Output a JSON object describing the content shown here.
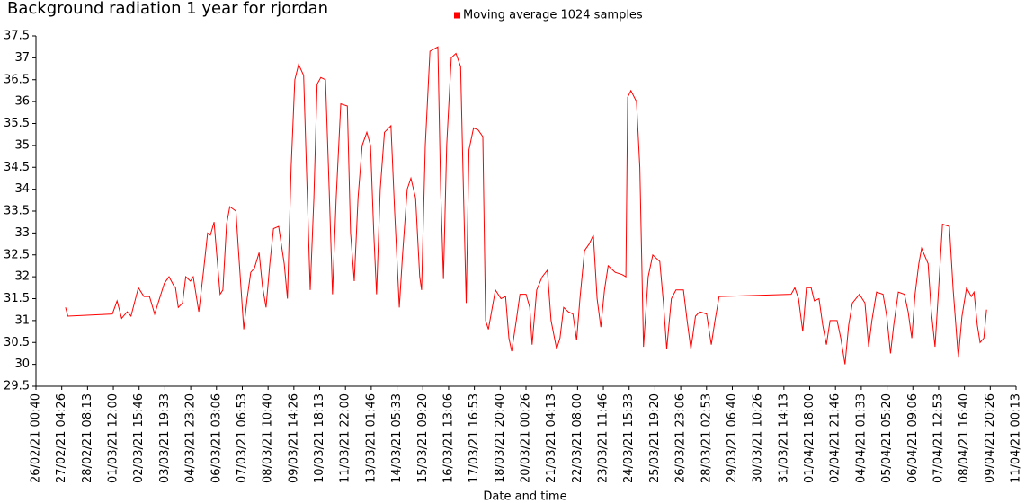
{
  "chart_data": {
    "type": "line",
    "title": "Background radiation 1 year for rjordan",
    "x_label": "Date and time",
    "xlim": [
      "26/02/21 00:40",
      "11/04/21 00:13"
    ],
    "xticks": [
      "26/02/21 00:40",
      "27/02/21 04:26",
      "28/02/21 08:13",
      "01/03/21 12:00",
      "02/03/21 15:46",
      "03/03/21 19:33",
      "04/03/21 23:20",
      "06/03/21 03:06",
      "07/03/21 06:53",
      "08/03/21 10:40",
      "09/03/21 14:26",
      "10/03/21 18:13",
      "11/03/21 22:00",
      "13/03/21 01:46",
      "14/03/21 05:33",
      "15/03/21 09:20",
      "16/03/21 13:06",
      "17/03/21 16:53",
      "18/03/21 20:40",
      "20/03/21 00:26",
      "21/03/21 04:13",
      "22/03/21 08:00",
      "23/03/21 11:46",
      "24/03/21 15:33",
      "25/03/21 19:20",
      "26/03/21 23:06",
      "28/03/21 02:53",
      "29/03/21 06:40",
      "30/03/21 10:26",
      "31/03/21 14:13",
      "01/04/21 18:00",
      "02/04/21 21:46",
      "04/04/21 01:33",
      "05/04/21 05:20",
      "06/04/21 09:06",
      "07/04/21 12:53",
      "08/04/21 16:40",
      "09/04/21 20:26",
      "11/04/21 00:13"
    ],
    "ylim": [
      29.5,
      37.5
    ],
    "yticks": [
      29.5,
      30,
      30.5,
      31,
      31.5,
      32,
      32.5,
      33,
      33.5,
      34,
      34.5,
      35,
      35.5,
      36,
      36.5,
      37,
      37.5
    ],
    "grid": false,
    "legend": "top",
    "x": [
      "27/02/21 08:30",
      "27/02/21 11:00",
      "01/03/21 11:00",
      "01/03/21 16:00",
      "01/03/21 21:00",
      "02/03/21 03:00",
      "02/03/21 07:00",
      "02/03/21 15:00",
      "02/03/21 21:00",
      "03/03/21 03:00",
      "03/03/21 08:30",
      "03/03/21 19:00",
      "04/03/21 00:00",
      "04/03/21 05:00",
      "04/03/21 07:00",
      "04/03/21 10:00",
      "04/03/21 14:30",
      "04/03/21 18:00",
      "04/03/21 23:00",
      "05/03/21 02:00",
      "05/03/21 08:00",
      "05/03/21 13:00",
      "05/03/21 17:30",
      "05/03/21 20:30",
      "06/03/21 00:30",
      "06/03/21 03:00",
      "06/03/21 07:00",
      "06/03/21 10:00",
      "06/03/21 14:00",
      "06/03/21 17:30",
      "07/03/21 00:00",
      "07/03/21 02:30",
      "07/03/21 08:30",
      "07/03/21 12:00",
      "07/03/21 16:00",
      "07/03/21 20:00",
      "08/03/21 01:00",
      "08/03/21 04:30",
      "08/03/21 08:30",
      "08/03/21 12:30",
      "08/03/21 16:30",
      "08/03/21 22:00",
      "09/03/21 04:00",
      "09/03/21 07:30",
      "09/03/21 11:30",
      "09/03/21 15:30",
      "09/03/21 19:30",
      "10/03/21 01:00",
      "10/03/21 04:00",
      "10/03/21 08:00",
      "10/03/21 12:00",
      "10/03/21 15:30",
      "10/03/21 19:30",
      "11/03/21 00:30",
      "11/03/21 04:30",
      "11/03/21 08:00",
      "11/03/21 12:00",
      "11/03/21 17:00",
      "12/03/21 00:00",
      "12/03/21 03:30",
      "12/03/21 07:30",
      "12/03/21 11:30",
      "12/03/21 16:00",
      "12/03/21 21:00",
      "13/03/21 01:00",
      "13/03/21 04:30",
      "13/03/21 07:30",
      "13/03/21 11:30",
      "13/03/21 16:00",
      "13/03/21 23:00",
      "14/03/21 03:00",
      "14/03/21 08:00",
      "14/03/21 11:30",
      "14/03/21 16:30",
      "14/03/21 20:30",
      "15/03/21 01:30",
      "15/03/21 06:00",
      "15/03/21 08:00",
      "15/03/21 12:00",
      "15/03/21 17:00",
      "16/03/21 01:30",
      "16/03/21 04:30",
      "16/03/21 07:30",
      "16/03/21 11:00",
      "16/03/21 16:00",
      "16/03/21 21:00",
      "17/03/21 02:00",
      "17/03/21 05:00",
      "17/03/21 08:00",
      "17/03/21 11:00",
      "17/03/21 16:00",
      "17/03/21 21:00",
      "18/03/21 02:00",
      "18/03/21 05:00",
      "18/03/21 08:00",
      "18/03/21 15:30",
      "18/03/21 21:30",
      "19/03/21 02:30",
      "19/03/21 06:00",
      "19/03/21 09:00",
      "19/03/21 14:00",
      "19/03/21 18:00",
      "20/03/21 00:30",
      "20/03/21 04:30",
      "20/03/21 07:00",
      "20/03/21 12:00",
      "20/03/21 18:00",
      "20/03/21 23:30",
      "21/03/21 03:30",
      "21/03/21 09:30",
      "21/03/21 13:00",
      "21/03/21 17:00",
      "21/03/21 22:00",
      "22/03/21 03:00",
      "22/03/21 07:00",
      "22/03/21 10:30",
      "22/03/21 15:30",
      "22/03/21 20:30",
      "23/03/21 01:00",
      "23/03/21 05:00",
      "23/03/21 09:00",
      "23/03/21 13:00",
      "23/03/21 17:00",
      "24/03/21 00:30",
      "24/03/21 08:00",
      "24/03/21 12:00",
      "24/03/21 14:00",
      "24/03/21 17:30",
      "24/03/21 23:30",
      "25/03/21 03:00",
      "25/03/21 07:00",
      "25/03/21 12:00",
      "25/03/21 17:00",
      "26/03/21 00:30",
      "26/03/21 04:30",
      "26/03/21 08:00",
      "26/03/21 13:00",
      "26/03/21 18:00",
      "27/03/21 02:00",
      "27/03/21 06:00",
      "27/03/21 10:00",
      "27/03/21 15:00",
      "27/03/21 19:30",
      "28/03/21 03:00",
      "28/03/21 08:00",
      "28/03/21 12:00",
      "28/03/21 16:30",
      "31/03/21 22:00",
      "01/04/21 02:00",
      "01/04/21 06:00",
      "01/04/21 10:30",
      "01/04/21 14:30",
      "01/04/21 19:30",
      "01/04/21 23:00",
      "02/04/21 04:00",
      "02/04/21 08:00",
      "02/04/21 12:00",
      "02/04/21 16:00",
      "02/04/21 23:30",
      "03/04/21 03:30",
      "03/04/21 08:00",
      "03/04/21 12:00",
      "03/04/21 16:00",
      "03/04/21 23:30",
      "04/04/21 05:30",
      "04/04/21 09:30",
      "04/04/21 13:00",
      "04/04/21 18:00",
      "05/04/21 01:00",
      "05/04/21 05:00",
      "05/04/21 09:00",
      "05/04/21 12:30",
      "05/04/21 17:30",
      "06/04/21 00:00",
      "06/04/21 04:00",
      "06/04/21 08:00",
      "06/04/21 11:30",
      "06/04/21 15:30",
      "06/04/21 18:30",
      "07/04/21 01:30",
      "07/04/21 05:00",
      "07/04/21 09:00",
      "07/04/21 13:00",
      "07/04/21 17:00",
      "08/04/21 00:30",
      "08/04/21 04:30",
      "08/04/21 10:00",
      "08/04/21 14:00",
      "08/04/21 19:00",
      "09/04/21 00:00",
      "09/04/21 03:00",
      "09/04/21 06:30",
      "09/04/21 09:30",
      "09/04/21 13:30",
      "09/04/21 16:30"
    ],
    "series": [
      {
        "name": "Moving average 1024 samples",
        "color": "#ff0000",
        "values": [
          31.3,
          31.1,
          31.15,
          31.45,
          31.05,
          31.2,
          31.1,
          31.75,
          31.55,
          31.55,
          31.15,
          31.85,
          32.0,
          31.8,
          31.75,
          31.3,
          31.4,
          32.0,
          31.9,
          32.0,
          31.2,
          32.1,
          33.0,
          32.95,
          33.25,
          32.6,
          31.6,
          31.7,
          33.2,
          33.6,
          33.5,
          32.7,
          30.8,
          31.5,
          32.1,
          32.2,
          32.55,
          31.8,
          31.3,
          32.3,
          33.1,
          33.15,
          32.3,
          31.5,
          34.5,
          36.5,
          36.85,
          36.6,
          34.5,
          31.7,
          33.8,
          36.4,
          36.55,
          36.5,
          34.0,
          31.6,
          33.8,
          35.95,
          35.9,
          33.0,
          31.9,
          33.8,
          35.0,
          35.3,
          35.0,
          33.0,
          31.6,
          34.0,
          35.3,
          35.45,
          33.5,
          31.3,
          32.5,
          34.0,
          34.25,
          33.8,
          32.0,
          31.7,
          35.0,
          37.15,
          37.25,
          34.0,
          31.95,
          35.0,
          37.0,
          37.1,
          36.8,
          34.0,
          31.4,
          34.9,
          35.4,
          35.35,
          35.2,
          31.0,
          30.8,
          31.7,
          31.5,
          31.55,
          30.6,
          30.3,
          31.0,
          31.6,
          31.6,
          31.3,
          30.45,
          31.7,
          32.0,
          32.15,
          31.0,
          30.35,
          30.6,
          31.3,
          31.2,
          31.15,
          30.55,
          31.5,
          32.6,
          32.75,
          32.95,
          31.5,
          30.85,
          31.7,
          32.25,
          32.1,
          32.05,
          32.0,
          36.1,
          36.25,
          36.0,
          34.5,
          30.4,
          32.0,
          32.5,
          32.35,
          31.4,
          30.35,
          31.5,
          31.7,
          31.7,
          31.0,
          30.35,
          31.1,
          31.2,
          31.15,
          30.45,
          31.0,
          31.55,
          31.6,
          31.75,
          31.5,
          30.75,
          31.75,
          31.75,
          31.45,
          31.5,
          30.9,
          30.45,
          31.0,
          31.0,
          30.6,
          30.0,
          30.9,
          31.4,
          31.6,
          31.4,
          30.4,
          31.0,
          31.65,
          31.6,
          31.1,
          30.25,
          30.9,
          31.65,
          31.6,
          31.2,
          30.6,
          31.6,
          32.3,
          32.65,
          32.3,
          31.2,
          30.4,
          31.8,
          33.2,
          33.15,
          31.7,
          30.15,
          31.1,
          31.75,
          31.55,
          31.65,
          30.9,
          30.5,
          30.6,
          31.25
        ]
      }
    ]
  }
}
